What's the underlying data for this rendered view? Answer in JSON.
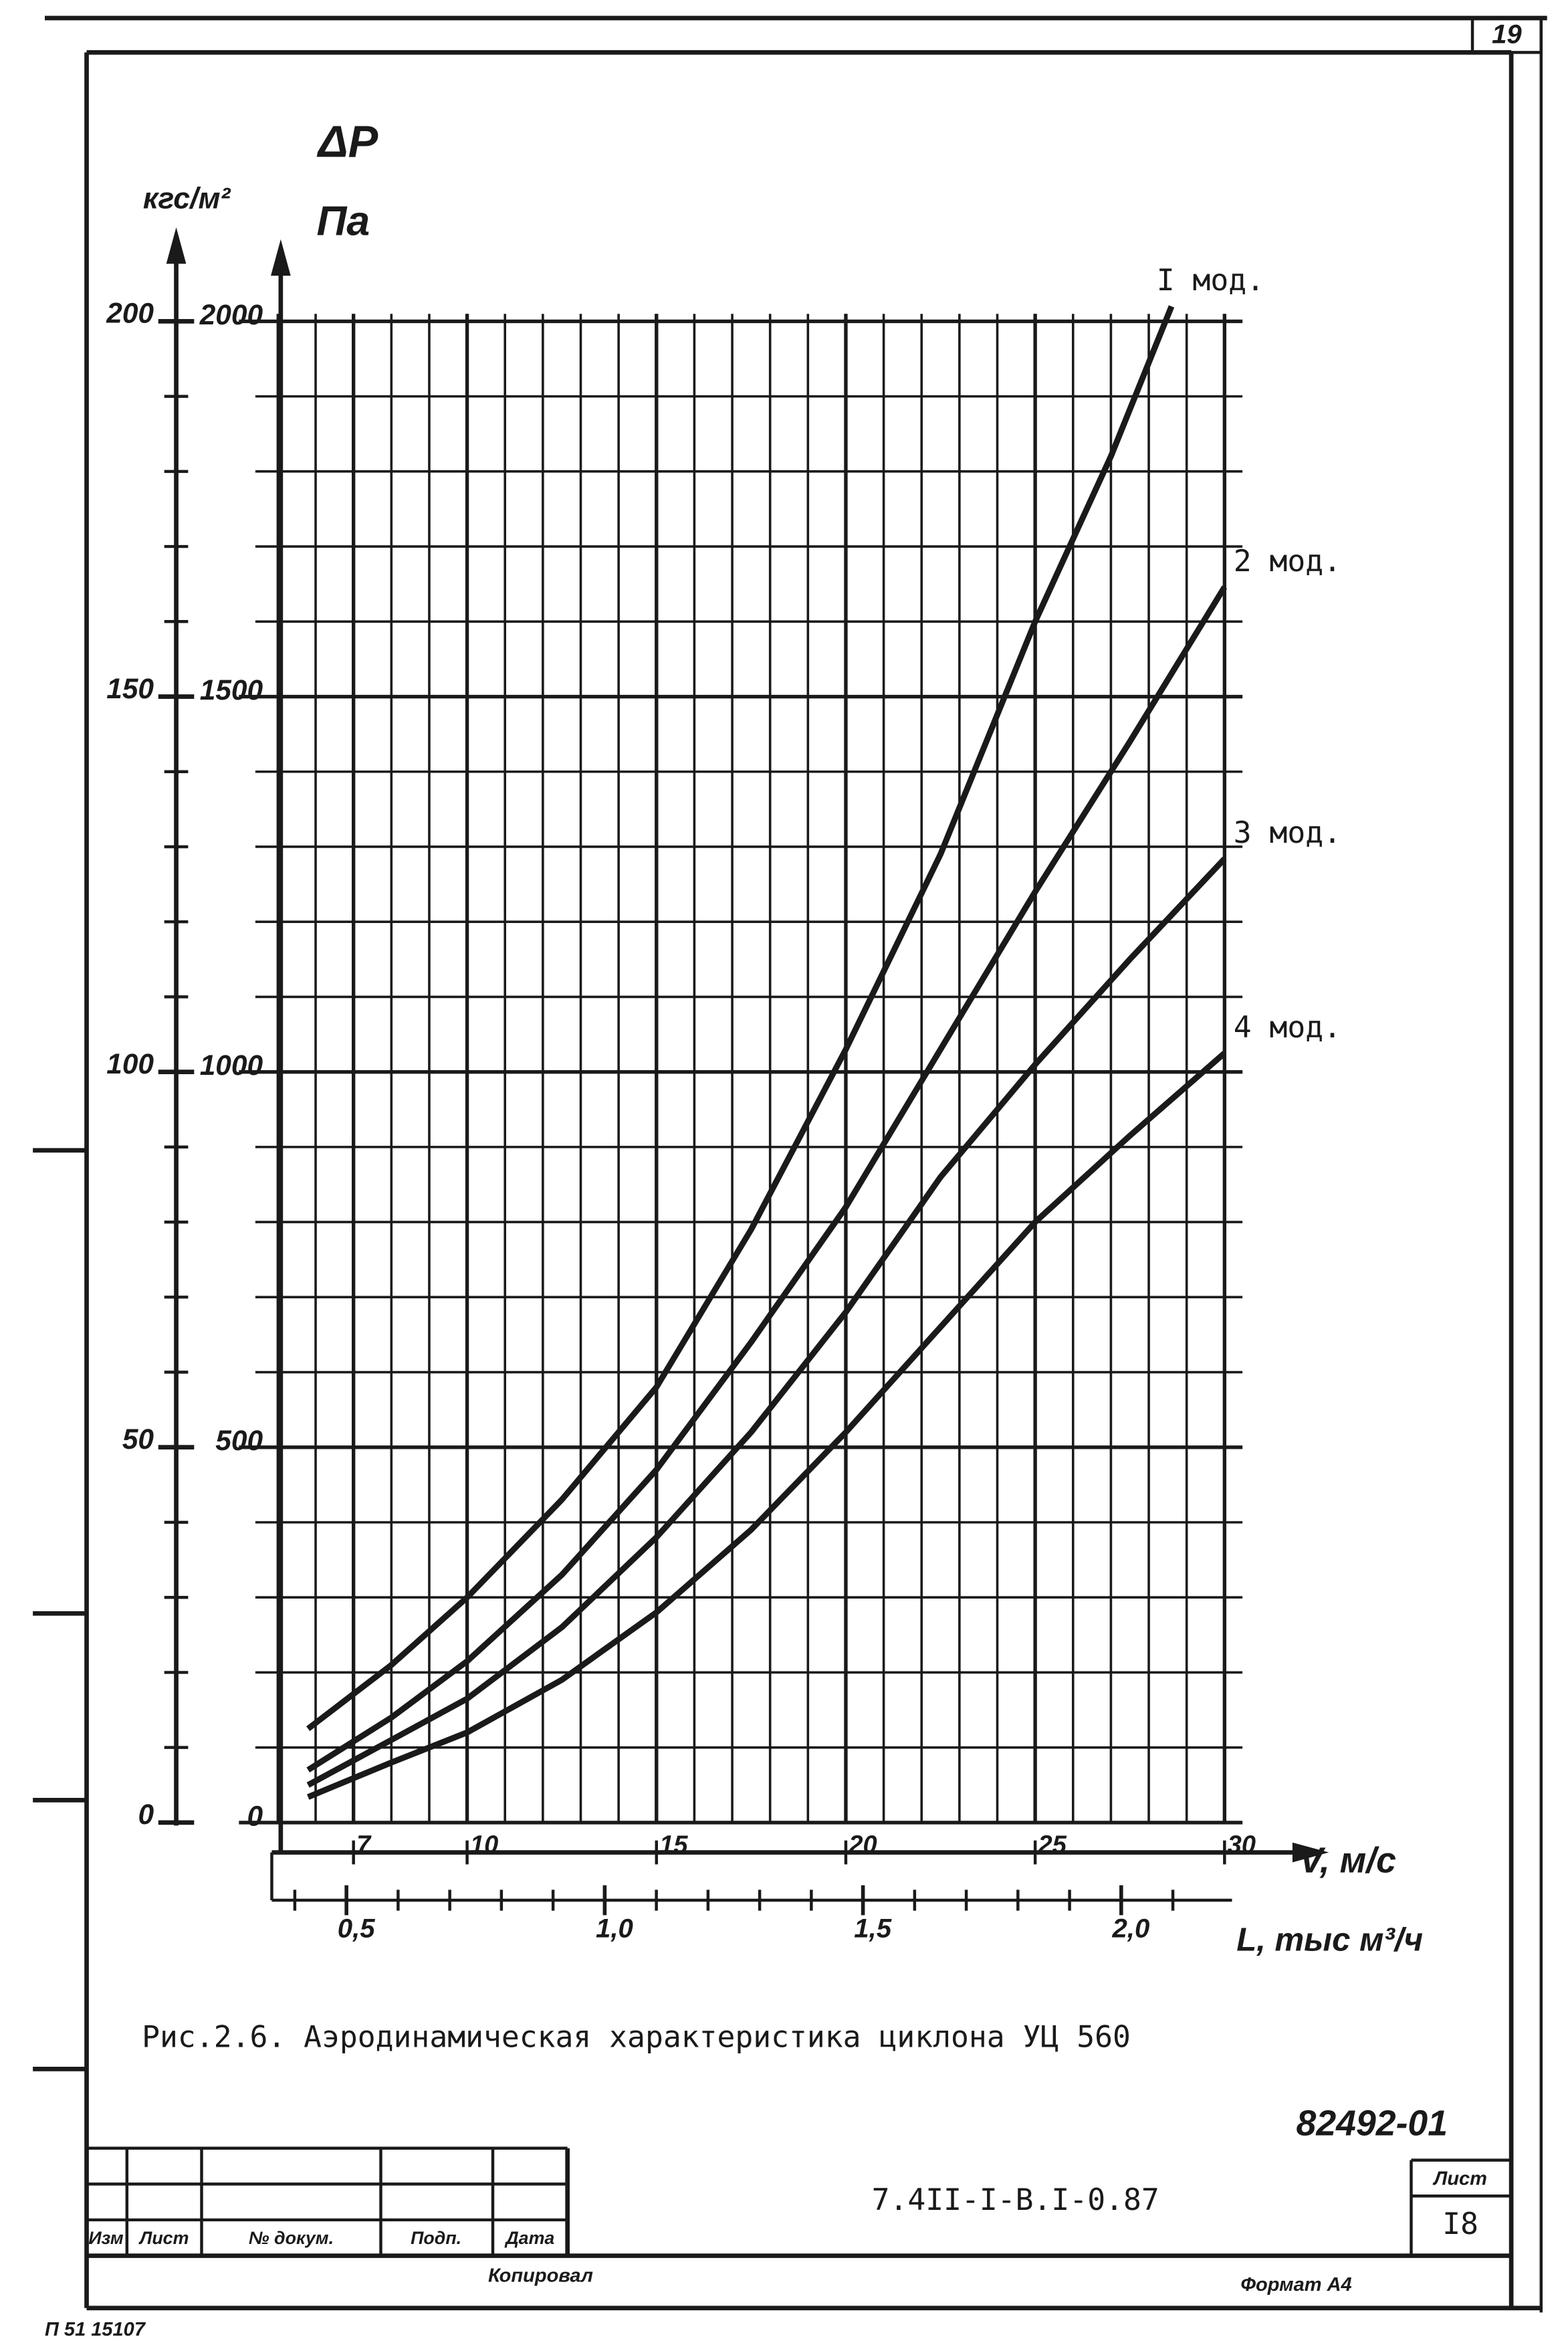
{
  "sheet_number": "19",
  "chart_data": {
    "type": "line",
    "y_label_symbol": "ΔP",
    "y_label": "Па",
    "y2_label": "кгс/м²",
    "x_label": "V, м/с",
    "x2_label": "L, тыс м³/ч",
    "xlim": [
      5,
      30
    ],
    "xticks": [
      7,
      10,
      15,
      20,
      25,
      30
    ],
    "x2lim": [
      0.367,
      2.2
    ],
    "x2ticks": [
      {
        "value": 0.5,
        "label": "0,5"
      },
      {
        "value": 1.0,
        "label": "1,0"
      },
      {
        "value": 1.5,
        "label": "1,5"
      },
      {
        "value": 2.0,
        "label": "2,0"
      }
    ],
    "ylim": [
      0,
      2000
    ],
    "yticks": [
      0,
      500,
      1000,
      1500,
      2000
    ],
    "y2lim": [
      0,
      200
    ],
    "y2ticks": [
      0,
      50,
      100,
      150,
      200
    ],
    "grid": true,
    "series": [
      {
        "name": "I мод.",
        "color": "#1a1a1a",
        "x": [
          5.8,
          8,
          10,
          12.5,
          15,
          17.5,
          20,
          22.5,
          25,
          27,
          28.6
        ],
        "values": [
          125,
          210,
          300,
          430,
          580,
          790,
          1030,
          1290,
          1600,
          1820,
          2020
        ]
      },
      {
        "name": "2 мод.",
        "color": "#1a1a1a",
        "x": [
          5.8,
          8,
          10,
          12.5,
          15,
          17.5,
          20,
          22.5,
          25,
          27.5,
          30
        ],
        "values": [
          70,
          140,
          215,
          330,
          470,
          640,
          820,
          1030,
          1240,
          1440,
          1646
        ]
      },
      {
        "name": "3 мод.",
        "color": "#1a1a1a",
        "x": [
          5.8,
          8,
          10,
          12.5,
          15,
          17.5,
          20,
          22.5,
          25,
          27.5,
          30
        ],
        "values": [
          50,
          110,
          165,
          260,
          380,
          520,
          680,
          860,
          1010,
          1150,
          1284
        ]
      },
      {
        "name": "4 мод.",
        "color": "#1a1a1a",
        "x": [
          5.8,
          8,
          10,
          12.5,
          15,
          17.5,
          20,
          22.5,
          25,
          27.5,
          30
        ],
        "values": [
          34,
          80,
          120,
          190,
          280,
          390,
          520,
          660,
          800,
          915,
          1025
        ]
      }
    ],
    "caption": "Рис.2.6. Аэродинамическая характеристика циклона УЦ 560"
  },
  "stamp": {
    "archive_number": "82492-01",
    "document_code": "7.4II-I-В.I-0.87",
    "sheet_label": "Лист",
    "sheet": "I8",
    "columns": [
      "Изм",
      "Лист",
      "№ докум.",
      "Подп.",
      "Дата"
    ],
    "copied": "Копировал",
    "format": "Формат А4",
    "inventory": "П 51 15107"
  }
}
